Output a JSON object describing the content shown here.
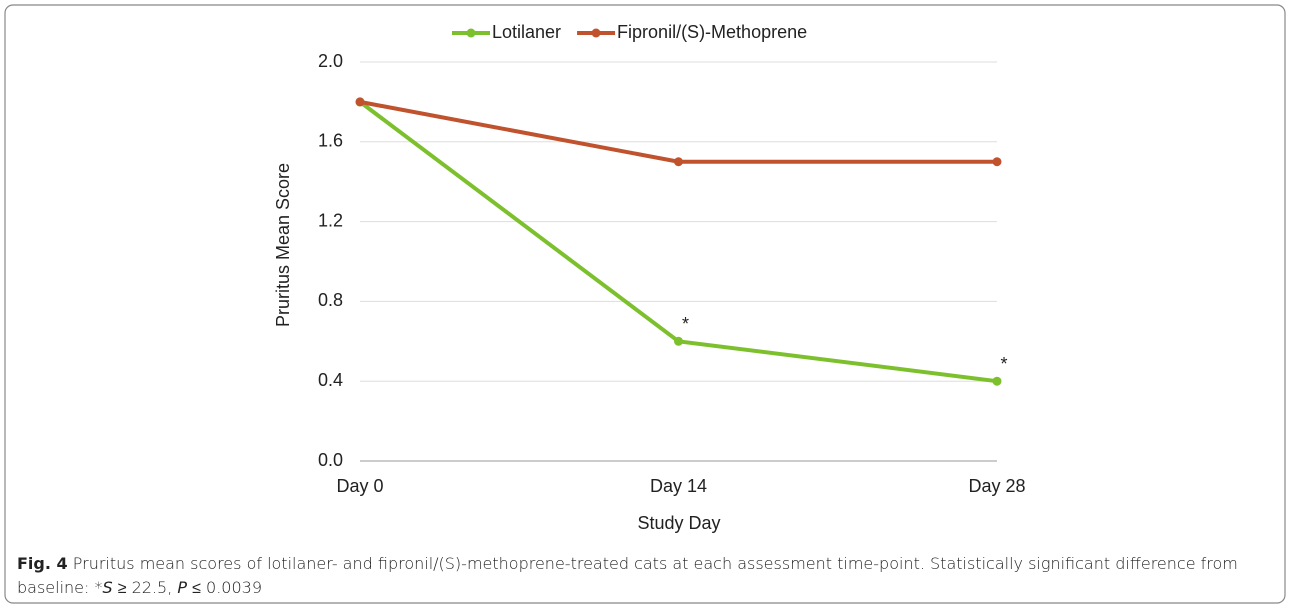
{
  "chart_data": {
    "type": "line",
    "categories": [
      "Day 0",
      "Day 14",
      "Day 28"
    ],
    "series": [
      {
        "name": "Lotilaner",
        "color": "#7dc02d",
        "values": [
          1.8,
          0.6,
          0.4
        ]
      },
      {
        "name": "Fipronil/(S)-Methoprene",
        "color": "#c0532e",
        "values": [
          1.8,
          1.5,
          1.5
        ]
      }
    ],
    "ylim": [
      0,
      2.0
    ],
    "yticks": [
      {
        "value": 0,
        "label": "0.0"
      },
      {
        "value": 0.4,
        "label": "0.4"
      },
      {
        "value": 0.8,
        "label": "0.8"
      },
      {
        "value": 1.2,
        "label": "1.2"
      },
      {
        "value": 1.6,
        "label": "1.6"
      },
      {
        "value": 2.0,
        "label": "2.0"
      }
    ],
    "ylabel": "Pruritus Mean Score",
    "xlabel": "Study Day",
    "annotations": [
      "*",
      "*"
    ],
    "grid": true,
    "legend": "top"
  },
  "caption": {
    "label": "Fig. 4",
    "runs": [
      " Pruritus mean scores of lotilaner- and fipronil/(S)-methoprene-treated cats at each assessment time-point. Statistically significant difference from baseline: *",
      "S",
      " ≥ 22.5, ",
      "P",
      " ≤ 0.0039"
    ]
  }
}
